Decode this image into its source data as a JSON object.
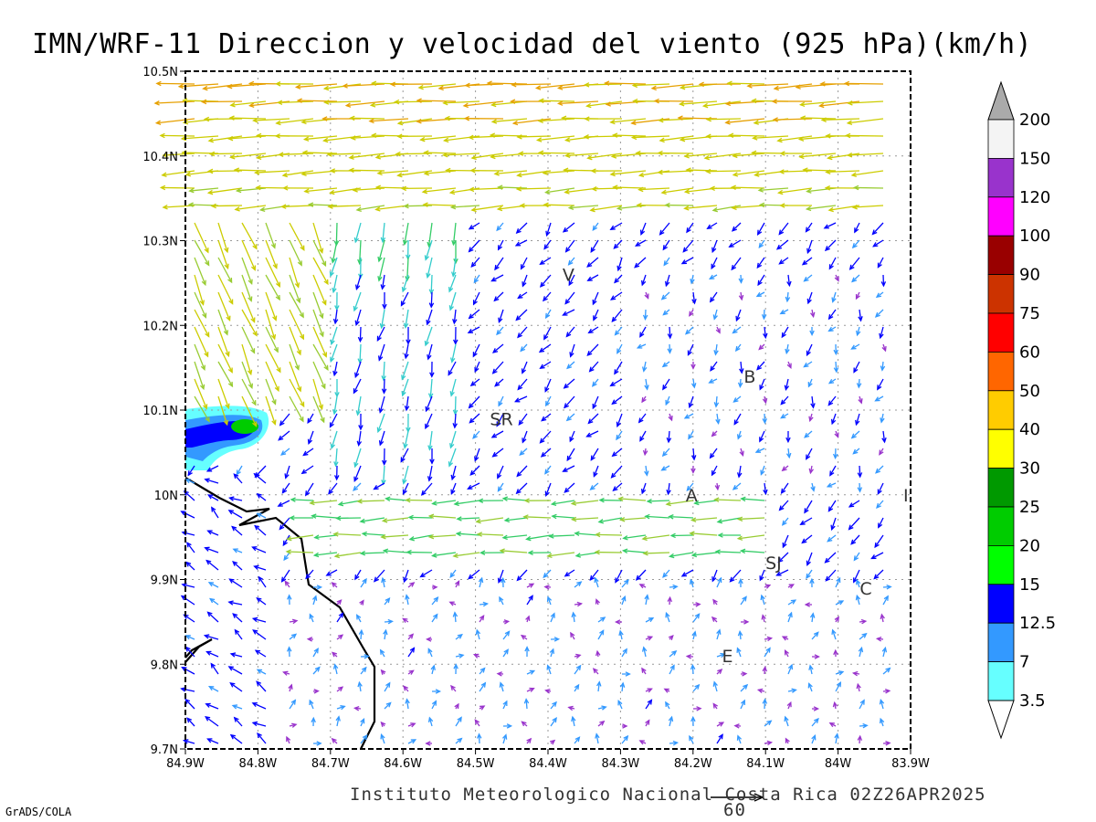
{
  "title": "IMN/WRF-11 Direccion y velocidad del viento (925 hPa)(km/h)",
  "footer": "Instituto Meteorologico Nacional Costa Rica 02Z26APR2025",
  "credit": "GrADS/COLA",
  "reference_vector_label": "60",
  "map": {
    "lon_range": [
      -84.9,
      -83.9
    ],
    "lat_range": [
      9.7,
      10.5
    ],
    "grid": "dotted",
    "x_ticks": [
      "84.9W",
      "84.8W",
      "84.7W",
      "84.6W",
      "84.5W",
      "84.4W",
      "84.3W",
      "84.2W",
      "84.1W",
      "84W",
      "83.9W"
    ],
    "y_ticks": [
      "9.7N",
      "9.8N",
      "9.9N",
      "10N",
      "10.1N",
      "10.2N",
      "10.3N",
      "10.4N",
      "10.5N"
    ],
    "cities": [
      {
        "label": "V",
        "lon": -84.37,
        "lat": 10.26
      },
      {
        "label": "SR",
        "lon": -84.47,
        "lat": 10.09
      },
      {
        "label": "B",
        "lon": -84.12,
        "lat": 10.14
      },
      {
        "label": "A",
        "lon": -84.2,
        "lat": 10.0
      },
      {
        "label": "SJ",
        "lon": -84.09,
        "lat": 9.92
      },
      {
        "label": "C",
        "lon": -83.96,
        "lat": 9.89
      },
      {
        "label": "E",
        "lon": -84.15,
        "lat": 9.81
      },
      {
        "label": "I",
        "lon": -83.9,
        "lat": 10.0
      }
    ]
  },
  "colorbar": {
    "labels": [
      "200",
      "150",
      "120",
      "100",
      "90",
      "75",
      "60",
      "50",
      "40",
      "30",
      "25",
      "20",
      "15",
      "12.5",
      "7",
      "3.5"
    ],
    "colors": [
      "#f4f4f4",
      "#9933cc",
      "#ff00ff",
      "#990000",
      "#cc3300",
      "#ff0000",
      "#ff6600",
      "#ffcc00",
      "#ffff00",
      "#009900",
      "#00cc00",
      "#00ff00",
      "#0000ff",
      "#3399ff",
      "#66ffff"
    ],
    "top_arrow_color": "#aaaaaa"
  },
  "wind_speed_color_scale": [
    {
      "max": 3.5,
      "color": "#9933cc"
    },
    {
      "max": 7,
      "color": "#3399ff"
    },
    {
      "max": 12.5,
      "color": "#0000ff"
    },
    {
      "max": 15,
      "color": "#0000ff"
    },
    {
      "max": 20,
      "color": "#33cccc"
    },
    {
      "max": 25,
      "color": "#33cc66"
    },
    {
      "max": 30,
      "color": "#99cc33"
    },
    {
      "max": 40,
      "color": "#cccc00"
    },
    {
      "max": 50,
      "color": "#e6a000"
    },
    {
      "max": 60,
      "color": "#e65c00"
    },
    {
      "max": 75,
      "color": "#ff0000"
    }
  ]
}
